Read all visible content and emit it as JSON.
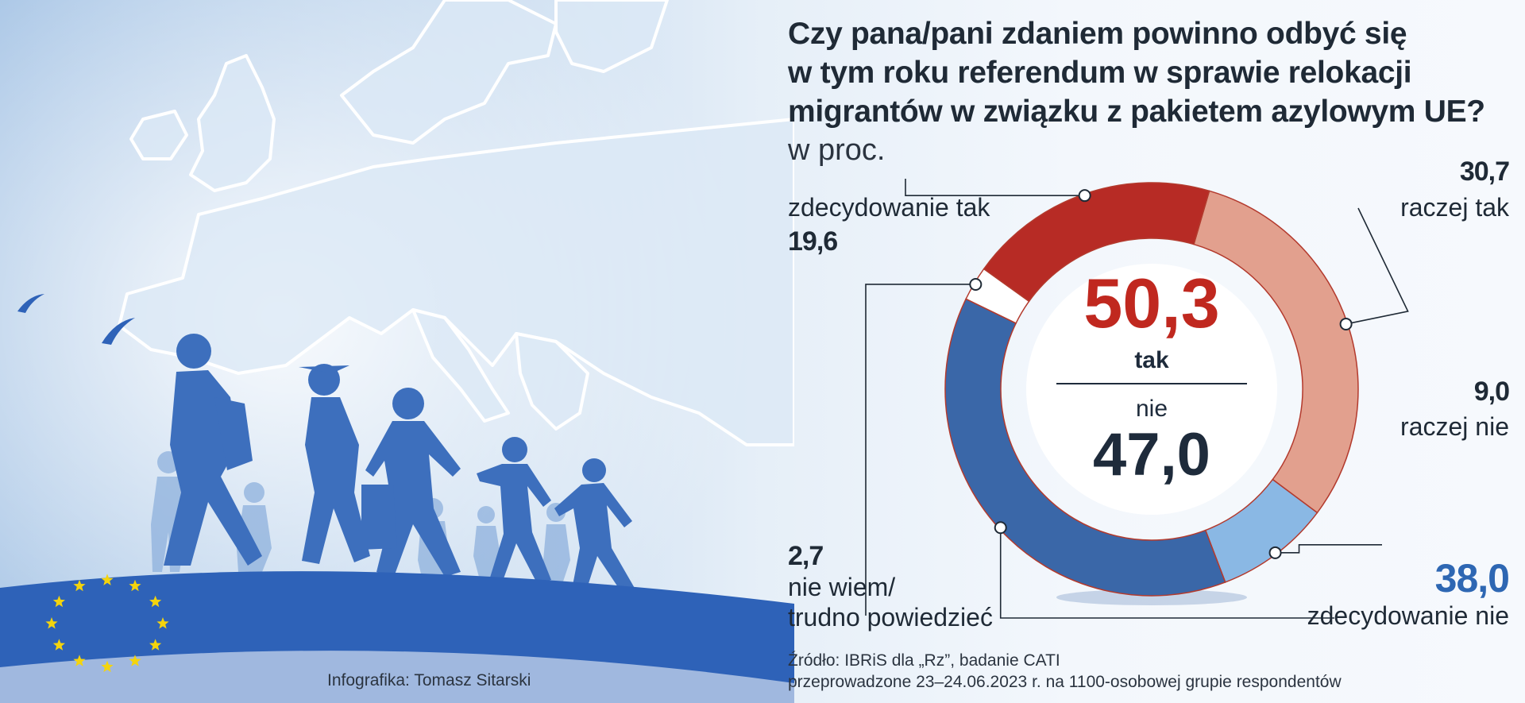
{
  "header": {
    "title_lines": [
      "Czy pana/pani zdaniem powinno odbyć się",
      "w tym roku referendum w sprawie relokacji",
      "migrantów w związku z pakietem azylowym UE?"
    ],
    "unit": "w proc."
  },
  "chart_data": {
    "type": "pie",
    "variant": "donut",
    "title": "Czy pana/pani zdaniem powinno odbyć się w tym roku referendum w sprawie relokacji migrantów w związku z pakietem azylowym UE?",
    "unit": "w proc.",
    "slices": [
      {
        "label": "raczej tak",
        "value": 30.7,
        "value_text": "30,7",
        "color": "#e2a08e"
      },
      {
        "label": "raczej nie",
        "value": 9.0,
        "value_text": "9,0",
        "color": "#8ab8e4"
      },
      {
        "label": "zdecydowanie nie",
        "value": 38.0,
        "value_text": "38,0",
        "color": "#3a67a8"
      },
      {
        "label_lines": [
          "nie wiem/",
          "trudno powiedzieć"
        ],
        "value": 2.7,
        "value_text": "2,7",
        "color": "#ffffff"
      },
      {
        "label": "zdecydowanie tak",
        "value": 19.6,
        "value_text": "19,6",
        "color": "#b72b25"
      }
    ],
    "center": {
      "tak_value": "50,3",
      "tak_label": "tak",
      "nie_label": "nie",
      "nie_value": "47,0",
      "tak_color": "#c0281f",
      "nie_color": "#1e2b3b"
    },
    "legend_position": "none"
  },
  "footer": {
    "source_lines": [
      "Źródło: IBRiS dla „Rz”, badanie CATI",
      "przeprowadzone 23–24.06.2023 r. na 1100-osobowej grupie respondentów"
    ],
    "credit": "Infografika: Tomasz Sitarski"
  },
  "colors": {
    "eu_blue": "#2e62b8",
    "eu_star": "#f4d40d",
    "silhouette": "#3d6fbd",
    "text_dark": "#1f2a36",
    "accent_blue": "#2e67b3"
  }
}
